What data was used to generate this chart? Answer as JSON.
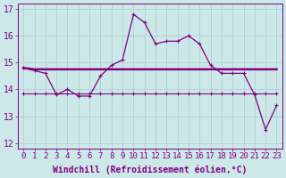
{
  "xlabel": "Windchill (Refroidissement éolien,°C)",
  "x": [
    0,
    1,
    2,
    3,
    4,
    5,
    6,
    7,
    8,
    9,
    10,
    11,
    12,
    13,
    14,
    15,
    16,
    17,
    18,
    19,
    20,
    21,
    22,
    23
  ],
  "top_line_y": [
    14.8,
    14.7,
    14.6,
    13.8,
    14.0,
    13.75,
    13.75,
    14.5,
    14.9,
    15.1,
    16.8,
    16.5,
    15.7,
    15.8,
    15.8,
    16.0,
    15.7,
    14.9,
    14.6,
    14.6,
    14.6,
    13.8,
    12.5,
    13.4
  ],
  "mid_line_y": [
    14.8,
    14.75,
    14.75,
    14.75,
    14.75,
    14.75,
    14.75,
    14.75,
    14.75,
    14.75,
    14.75,
    14.75,
    14.75,
    14.75,
    14.75,
    14.75,
    14.75,
    14.75,
    14.75,
    14.75,
    14.75,
    14.75,
    14.75,
    14.75
  ],
  "low_line_y": [
    13.85,
    13.85,
    13.85,
    13.85,
    13.85,
    13.85,
    13.85,
    13.85,
    13.85,
    13.85,
    13.85,
    13.85,
    13.85,
    13.85,
    13.85,
    13.85,
    13.85,
    13.85,
    13.85,
    13.85,
    13.85,
    13.85,
    13.85,
    13.85
  ],
  "ylim": [
    11.8,
    17.2
  ],
  "xlim": [
    -0.5,
    23.5
  ],
  "bg_color": "#cce8e8",
  "line_color": "#800080",
  "grid_color": "#aacccc",
  "font_color": "#800080",
  "tick_fontsize": 6.5,
  "label_fontsize": 7.0
}
